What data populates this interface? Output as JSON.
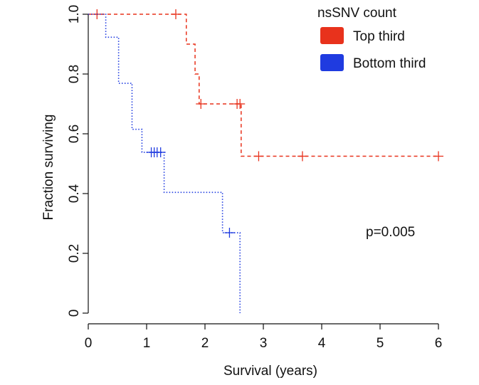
{
  "chart_data": {
    "type": "line",
    "subtype": "kaplan-meier",
    "title": "",
    "xlabel": "Survival (years)",
    "ylabel": "Fraction surviving",
    "xlim": [
      0,
      6
    ],
    "ylim": [
      0,
      1
    ],
    "xticks": [
      0,
      1,
      2,
      3,
      4,
      5,
      6
    ],
    "xtick_labels": [
      "0",
      "1",
      "2",
      "3",
      "4",
      "5",
      "6"
    ],
    "yticks": [
      0,
      0.2,
      0.4,
      0.6,
      0.8,
      1.0
    ],
    "ytick_labels": [
      "0",
      "0.2",
      "0.4",
      "0.6",
      "0.8",
      "1.0"
    ],
    "grid": false,
    "legend": {
      "title": "nsSNV count",
      "placement": "top-right"
    },
    "annotation": "p=0.005",
    "series": [
      {
        "name": "Top third",
        "color": "#e8321c",
        "line_style": "dashed",
        "steps": [
          [
            0,
            1.0
          ],
          [
            1.68,
            0.9
          ],
          [
            1.83,
            0.8
          ],
          [
            1.9,
            0.7
          ],
          [
            2.62,
            0.525
          ]
        ],
        "end_x": 6.0,
        "censored": [
          [
            0.15,
            1.0
          ],
          [
            1.5,
            1.0
          ],
          [
            1.93,
            0.7
          ],
          [
            2.55,
            0.7
          ],
          [
            2.6,
            0.7
          ],
          [
            2.92,
            0.525
          ],
          [
            3.67,
            0.525
          ],
          [
            6.0,
            0.525
          ]
        ]
      },
      {
        "name": "Bottom third",
        "color": "#1f3be0",
        "line_style": "dotted",
        "steps": [
          [
            0,
            1.0
          ],
          [
            0.3,
            0.923
          ],
          [
            0.52,
            0.769
          ],
          [
            0.75,
            0.615
          ],
          [
            0.92,
            0.538
          ],
          [
            1.3,
            0.404
          ],
          [
            2.3,
            0.269
          ],
          [
            2.6,
            0.0
          ]
        ],
        "end_x": 2.6,
        "censored": [
          [
            1.08,
            0.538
          ],
          [
            1.13,
            0.538
          ],
          [
            1.18,
            0.538
          ],
          [
            1.24,
            0.538
          ],
          [
            2.42,
            0.269
          ]
        ]
      }
    ]
  }
}
